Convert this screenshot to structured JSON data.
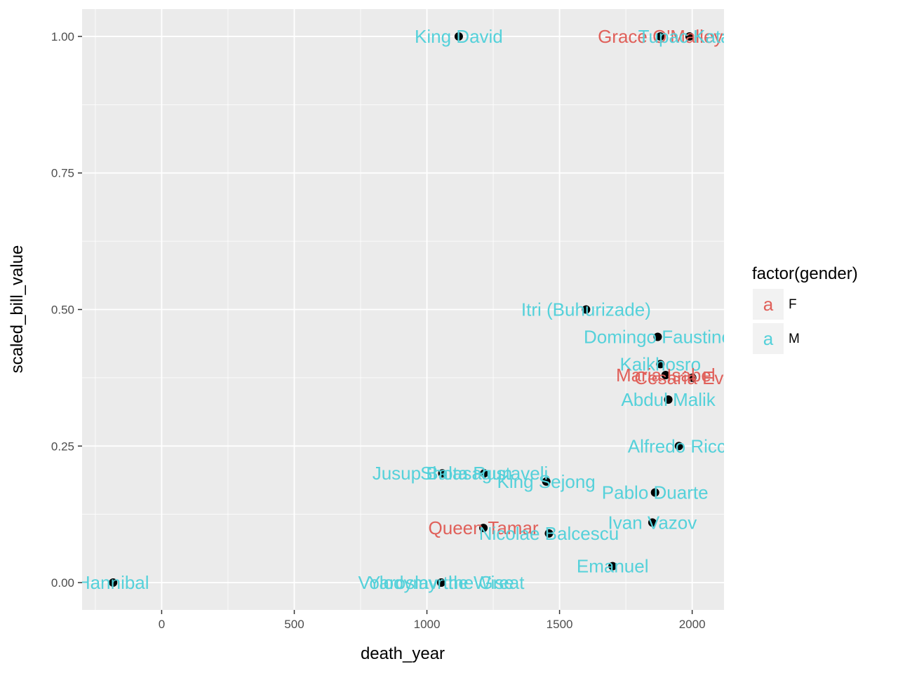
{
  "chart_data": {
    "type": "scatter",
    "title": "",
    "xlabel": "death_year",
    "ylabel": "scaled_bill_value",
    "xlim": [
      -300,
      2120
    ],
    "ylim": [
      -0.05,
      1.05
    ],
    "x_ticks": [
      0,
      500,
      1000,
      1500,
      2000
    ],
    "x_tick_labels": [
      "0",
      "500",
      "1000",
      "1500",
      "2000"
    ],
    "y_ticks": [
      0,
      0.25,
      0.5,
      0.75,
      1
    ],
    "y_tick_labels": [
      "0.00",
      "0.25",
      "0.50",
      "0.75",
      "1.00"
    ],
    "grid": true,
    "legend": {
      "title": "factor(gender)",
      "placement": "right",
      "key_glyph": "a",
      "entries": [
        {
          "label": "F",
          "color": "#e0605a"
        },
        {
          "label": "M",
          "color": "#55d1da"
        }
      ]
    },
    "colors": {
      "F": "#e0605a",
      "M": "#55d1da",
      "point": "#000000",
      "panel": "#ebebeb",
      "grid": "#ffffff"
    },
    "points": [
      {
        "x": -183,
        "y": 0.0,
        "gender": "M",
        "label": "Hannibal"
      },
      {
        "x": 1054,
        "y": 0.0,
        "gender": "M",
        "label": "Yaroslav the Wise"
      },
      {
        "x": 1054,
        "y": 0.0,
        "gender": "M",
        "label": "Volodymyr the Great"
      },
      {
        "x": 1120,
        "y": 1.0,
        "gender": "M",
        "label": "King David"
      },
      {
        "x": 1213,
        "y": 0.1,
        "gender": "F",
        "label": "Queen Tamar"
      },
      {
        "x": 1058,
        "y": 0.2,
        "gender": "M",
        "label": "Jusup Balasagun"
      },
      {
        "x": 1216,
        "y": 0.2,
        "gender": "M",
        "label": "Shota Rustaveli"
      },
      {
        "x": 1450,
        "y": 0.185,
        "gender": "M",
        "label": "King Sejong"
      },
      {
        "x": 1600,
        "y": 0.5,
        "gender": "M",
        "label": "Itri (Buhurizade)"
      },
      {
        "x": 1870,
        "y": 0.45,
        "gender": "M",
        "label": "Domingo Faustino"
      },
      {
        "x": 1880,
        "y": 0.4,
        "gender": "M",
        "label": "Kaikhosro"
      },
      {
        "x": 1900,
        "y": 0.38,
        "gender": "F",
        "label": "Maria Isabel"
      },
      {
        "x": 2000,
        "y": 0.375,
        "gender": "F",
        "label": "Cesaria Evora"
      },
      {
        "x": 1910,
        "y": 0.335,
        "gender": "M",
        "label": "Abdul Malik"
      },
      {
        "x": 1950,
        "y": 0.25,
        "gender": "M",
        "label": "Alfredo Ricci"
      },
      {
        "x": 1860,
        "y": 0.165,
        "gender": "M",
        "label": "Pablo Duarte"
      },
      {
        "x": 1850,
        "y": 0.11,
        "gender": "M",
        "label": "Ivan Vazov"
      },
      {
        "x": 1460,
        "y": 0.09,
        "gender": "M",
        "label": "Nicolae Balcescu"
      },
      {
        "x": 1700,
        "y": 0.03,
        "gender": "M",
        "label": "Emanuel"
      },
      {
        "x": 1880,
        "y": 1.0,
        "gender": "F",
        "label": "Grace O'Malley"
      },
      {
        "x": 1990,
        "y": 1.0,
        "gender": "M",
        "label": "Tupac Katari"
      }
    ]
  }
}
